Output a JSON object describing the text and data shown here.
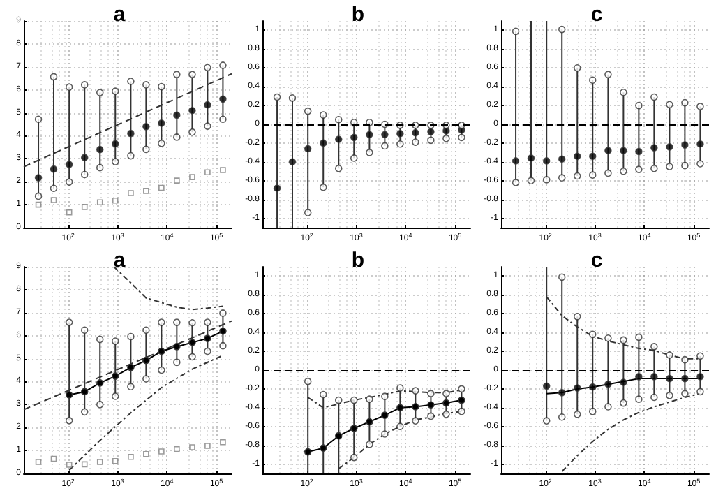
{
  "chart_data": [
    {
      "type": "scatter",
      "title": "a",
      "log": "x",
      "grid": true,
      "xlim": [
        12.6,
        204000
      ],
      "ylim": [
        0,
        9
      ],
      "xticks": [
        {
          "value": 100,
          "label": "10$^{2}$"
        },
        {
          "value": 1000,
          "label": "10$^{3}$"
        },
        {
          "value": 10000,
          "label": "10$^{4}$"
        },
        {
          "value": 100000,
          "label": "10$^{5}$"
        }
      ],
      "yticks": [
        0,
        1,
        2,
        3,
        4,
        5,
        6,
        7,
        8,
        9
      ],
      "x": [
        25,
        51,
        105,
        215,
        440,
        900,
        1850,
        3780,
        7730,
        15800,
        32400,
        66200,
        135500
      ],
      "series": [
        {
          "type": "line",
          "x": [
            12.6,
            204000
          ],
          "values": [
            2.65,
            6.7
          ],
          "color": "#333333",
          "line_style": "dashed",
          "marker": "none"
        },
        {
          "values": [
            1.0,
            1.2,
            0.66,
            0.9,
            1.1,
            1.18,
            1.5,
            1.6,
            1.73,
            2.05,
            2.2,
            2.41,
            2.51
          ],
          "color": "#808080",
          "marker": "square"
        },
        {
          "values": [
            2.17,
            2.55,
            2.75,
            3.05,
            3.4,
            3.65,
            4.1,
            4.4,
            4.55,
            4.9,
            5.1,
            5.35,
            5.6
          ],
          "color": "#000000",
          "marker": "circle",
          "errors": [
            [
              1.37,
              4.72
            ],
            [
              1.71,
              6.57
            ],
            [
              1.99,
              6.12
            ],
            [
              2.31,
              6.22
            ],
            [
              2.61,
              5.88
            ],
            [
              2.87,
              5.94
            ],
            [
              3.13,
              6.37
            ],
            [
              3.41,
              6.22
            ],
            [
              3.67,
              6.14
            ],
            [
              3.94,
              6.67
            ],
            [
              4.16,
              6.67
            ],
            [
              4.42,
              6.97
            ],
            [
              4.72,
              7.07
            ]
          ]
        },
        {
          "values": [
            4.72,
            6.57,
            6.12,
            6.22,
            5.88,
            5.94,
            6.37,
            6.22,
            6.14,
            6.67,
            6.67,
            6.97,
            7.07
          ],
          "color": "#ffffff",
          "marker": "circle"
        },
        {
          "values": [
            1.37,
            1.71,
            1.99,
            2.31,
            2.61,
            2.87,
            3.13,
            3.41,
            3.67,
            3.94,
            4.16,
            4.42,
            4.72
          ],
          "color": "#ffffff",
          "marker": "circle"
        }
      ]
    },
    {
      "type": "scatter",
      "title": "b",
      "log": "x",
      "grid": true,
      "xlim": [
        12.6,
        204000
      ],
      "ylim": [
        -1.1,
        1.1
      ],
      "xticks": [
        {
          "value": 100,
          "label": "10$^{2}$"
        },
        {
          "value": 1000,
          "label": "10$^{3}$"
        },
        {
          "value": 10000,
          "label": "10$^{4}$"
        },
        {
          "value": 100000,
          "label": "10$^{5}$"
        }
      ],
      "yticks": [
        -1,
        -0.8,
        -0.6,
        -0.4,
        -0.2,
        0,
        0.2,
        0.4,
        0.6,
        0.8,
        1
      ],
      "x": [
        25,
        51,
        105,
        215,
        440,
        900,
        1850,
        3780,
        7730,
        15800,
        32400,
        66200,
        135500
      ],
      "ref_lines": [
        {
          "axis": "y",
          "value": 0,
          "line_style": "dashed",
          "color": "#000000"
        }
      ],
      "series": [
        {
          "values": [
            -0.68,
            -0.4,
            -0.26,
            -0.2,
            -0.16,
            -0.14,
            -0.11,
            -0.11,
            -0.1,
            -0.09,
            -0.08,
            -0.07,
            -0.06
          ],
          "color": "#000000",
          "marker": "circle",
          "errors": [
            [
              -1.1,
              0.29
            ],
            [
              -1.1,
              0.28
            ],
            [
              -0.94,
              0.14
            ],
            [
              -0.67,
              0.1
            ],
            [
              -0.47,
              0.05
            ],
            [
              -0.36,
              0.02
            ],
            [
              -0.3,
              0.02
            ],
            [
              -0.23,
              0.0
            ],
            [
              -0.21,
              -0.01
            ],
            [
              -0.19,
              -0.01
            ],
            [
              -0.17,
              -0.01
            ],
            [
              -0.15,
              -0.01
            ],
            [
              -0.14,
              -0.01
            ]
          ]
        },
        {
          "values": [
            0.29,
            0.28,
            0.14,
            0.1,
            0.05,
            0.02,
            0.02,
            0.0,
            -0.01,
            -0.01,
            -0.01,
            -0.01,
            -0.01
          ],
          "color": "#ffffff",
          "marker": "circle"
        },
        {
          "values": [
            null,
            null,
            -0.94,
            -0.67,
            -0.47,
            -0.36,
            -0.3,
            -0.23,
            -0.21,
            -0.19,
            -0.17,
            -0.15,
            -0.14
          ],
          "color": "#ffffff",
          "marker": "circle"
        }
      ]
    },
    {
      "type": "scatter",
      "title": "c",
      "log": "x",
      "grid": true,
      "xlim": [
        12.6,
        204000
      ],
      "ylim": [
        -1.1,
        1.1
      ],
      "xticks": [
        {
          "value": 100,
          "label": "10$^{2}$"
        },
        {
          "value": 1000,
          "label": "10$^{3}$"
        },
        {
          "value": 10000,
          "label": "10$^{4}$"
        },
        {
          "value": 100000,
          "label": "10$^{5}$"
        }
      ],
      "yticks": [
        -1,
        -0.8,
        -0.6,
        -0.4,
        -0.2,
        0,
        0.2,
        0.4,
        0.6,
        0.8,
        1
      ],
      "x": [
        25,
        51,
        105,
        215,
        440,
        900,
        1850,
        3780,
        7730,
        15800,
        32400,
        66200,
        135500
      ],
      "ref_lines": [
        {
          "axis": "y",
          "value": 0,
          "line_style": "dashed",
          "color": "#000000"
        }
      ],
      "series": [
        {
          "values": [
            -0.39,
            -0.36,
            -0.39,
            -0.37,
            -0.34,
            -0.34,
            -0.28,
            -0.28,
            -0.29,
            -0.25,
            -0.24,
            -0.22,
            -0.21
          ],
          "color": "#000000",
          "marker": "circle",
          "errors": [
            [
              -0.62,
              0.99
            ],
            [
              -0.6,
              1.1
            ],
            [
              -0.59,
              1.1
            ],
            [
              -0.57,
              1.01
            ],
            [
              -0.55,
              0.6
            ],
            [
              -0.54,
              0.47
            ],
            [
              -0.52,
              0.53
            ],
            [
              -0.5,
              0.34
            ],
            [
              -0.48,
              0.2
            ],
            [
              -0.47,
              0.29
            ],
            [
              -0.45,
              0.21
            ],
            [
              -0.44,
              0.23
            ],
            [
              -0.42,
              0.19
            ]
          ]
        },
        {
          "values": [
            0.99,
            null,
            null,
            1.01,
            0.6,
            0.47,
            0.53,
            0.34,
            0.2,
            0.29,
            0.21,
            0.23,
            0.19
          ],
          "color": "#ffffff",
          "marker": "circle"
        },
        {
          "values": [
            -0.62,
            -0.6,
            -0.59,
            -0.57,
            -0.55,
            -0.54,
            -0.52,
            -0.5,
            -0.48,
            -0.47,
            -0.45,
            -0.44,
            -0.42
          ],
          "color": "#ffffff",
          "marker": "circle"
        }
      ]
    },
    {
      "type": "line",
      "title": "a",
      "log": "x",
      "grid": true,
      "xlim": [
        12.6,
        204000
      ],
      "ylim": [
        0,
        9
      ],
      "xticks": [
        {
          "value": 100,
          "label": "10$^{2}$"
        },
        {
          "value": 1000,
          "label": "10$^{3}$"
        },
        {
          "value": 10000,
          "label": "10$^{4}$"
        },
        {
          "value": 100000,
          "label": "10$^{5}$"
        }
      ],
      "yticks": [
        0,
        1,
        2,
        3,
        4,
        5,
        6,
        7,
        8,
        9
      ],
      "x": [
        105,
        215,
        440,
        900,
        1850,
        3780,
        7730,
        15800,
        32400,
        66200,
        135500
      ],
      "series": [
        {
          "x": [
            12.6,
            204000
          ],
          "values": [
            2.78,
            6.64
          ],
          "color": "#333333",
          "line_style": "dashed",
          "marker": "none"
        },
        {
          "x": [
            840,
            1850,
            3780,
            7730,
            15800,
            32400,
            66200,
            135500
          ],
          "values": [
            9,
            8.3,
            7.64,
            7.44,
            7.24,
            7.14,
            7.2,
            7.28
          ],
          "color": "#333333",
          "line_style": "dotted",
          "marker": "none"
        },
        {
          "x": [
            105,
            440,
            1850,
            7730,
            32400,
            135500
          ],
          "values": [
            0.14,
            1.44,
            2.64,
            3.74,
            4.54,
            5.14
          ],
          "color": "#333333",
          "line_style": "dotted",
          "marker": "none"
        },
        {
          "type": "scatter",
          "x": [
            25,
            51,
            105,
            215,
            440,
            900,
            1850,
            3780,
            7730,
            15800,
            32400,
            66200,
            135500
          ],
          "values": [
            0.5,
            0.64,
            0.38,
            0.4,
            0.5,
            0.54,
            0.72,
            0.84,
            0.96,
            1.06,
            1.14,
            1.2,
            1.36
          ],
          "color": "#808080",
          "marker": "square"
        },
        {
          "values": [
            3.42,
            3.56,
            3.94,
            4.24,
            4.62,
            4.92,
            5.32,
            5.52,
            5.7,
            5.88,
            6.2
          ],
          "color": "#000000",
          "marker": "circle",
          "line_style": "solid",
          "errors": [
            [
              2.3,
              6.58
            ],
            [
              2.68,
              6.24
            ],
            [
              3.0,
              5.84
            ],
            [
              3.36,
              5.76
            ],
            [
              3.78,
              5.96
            ],
            [
              4.12,
              6.24
            ],
            [
              4.5,
              6.58
            ],
            [
              4.84,
              6.58
            ],
            [
              5.08,
              6.56
            ],
            [
              5.32,
              6.58
            ],
            [
              5.56,
              6.98
            ]
          ]
        },
        {
          "type": "scatter",
          "values": [
            6.58,
            6.24,
            5.84,
            5.76,
            5.96,
            6.24,
            6.58,
            6.58,
            6.56,
            6.58,
            6.98
          ],
          "color": "#ffffff",
          "marker": "circle"
        },
        {
          "type": "scatter",
          "values": [
            2.3,
            2.68,
            3.0,
            3.36,
            3.78,
            4.12,
            4.5,
            4.84,
            5.08,
            5.32,
            5.56
          ],
          "color": "#ffffff",
          "marker": "circle"
        }
      ]
    },
    {
      "type": "line",
      "title": "b",
      "log": "x",
      "grid": true,
      "xlim": [
        12.6,
        204000
      ],
      "ylim": [
        -1.1,
        1.1
      ],
      "xticks": [
        {
          "value": 100,
          "label": "10$^{2}$"
        },
        {
          "value": 1000,
          "label": "10$^{3}$"
        },
        {
          "value": 10000,
          "label": "10$^{4}$"
        },
        {
          "value": 100000,
          "label": "10$^{5}$"
        }
      ],
      "yticks": [
        -1,
        -0.8,
        -0.6,
        -0.4,
        -0.2,
        0,
        0.2,
        0.4,
        0.6,
        0.8,
        1
      ],
      "x": [
        105,
        215,
        440,
        900,
        1850,
        3780,
        7730,
        15800,
        32400,
        66200,
        135500
      ],
      "ref_lines": [
        {
          "axis": "y",
          "value": 0,
          "line_style": "dashed",
          "color": "#000000"
        }
      ],
      "series": [
        {
          "values": [
            -0.29,
            -0.4,
            -0.36,
            -0.32,
            -0.29,
            -0.26,
            -0.22,
            -0.23,
            -0.24,
            -0.24,
            -0.21
          ],
          "color": "#333333",
          "line_style": "dotted",
          "marker": "none"
        },
        {
          "x": [
            440,
            900,
            1850,
            3780,
            7730,
            15800,
            32400,
            66200,
            135500
          ],
          "values": [
            -1.05,
            -0.93,
            -0.79,
            -0.68,
            -0.6,
            -0.53,
            -0.5,
            -0.46,
            -0.44
          ],
          "color": "#333333",
          "line_style": "dotted",
          "marker": "none"
        },
        {
          "values": [
            -0.87,
            -0.83,
            -0.7,
            -0.62,
            -0.55,
            -0.48,
            -0.4,
            -0.39,
            -0.37,
            -0.35,
            -0.32
          ],
          "color": "#000000",
          "marker": "circle",
          "line_style": "solid",
          "errors": [
            [
              -1.1,
              -0.12
            ],
            [
              -1.1,
              -0.26
            ],
            [
              -1.1,
              -0.32
            ],
            [
              -0.93,
              -0.32
            ],
            [
              -0.79,
              -0.31
            ],
            [
              -0.68,
              -0.28
            ],
            [
              -0.6,
              -0.19
            ],
            [
              -0.54,
              -0.22
            ],
            [
              -0.49,
              -0.25
            ],
            [
              -0.47,
              -0.25
            ],
            [
              -0.44,
              -0.2
            ]
          ]
        },
        {
          "type": "scatter",
          "values": [
            -0.12,
            -0.26,
            -0.32,
            -0.32,
            -0.31,
            -0.28,
            -0.19,
            -0.22,
            -0.25,
            -0.25,
            -0.2
          ],
          "color": "#ffffff",
          "marker": "circle"
        },
        {
          "type": "scatter",
          "values": [
            null,
            null,
            null,
            -0.93,
            -0.79,
            -0.68,
            -0.6,
            -0.54,
            -0.49,
            -0.47,
            -0.44
          ],
          "color": "#ffffff",
          "marker": "circle"
        }
      ]
    },
    {
      "type": "line",
      "title": "c",
      "log": "x",
      "grid": true,
      "xlim": [
        12.6,
        204000
      ],
      "ylim": [
        -1.1,
        1.1
      ],
      "xticks": [
        {
          "value": 100,
          "label": "10$^{2}$"
        },
        {
          "value": 1000,
          "label": "10$^{3}$"
        },
        {
          "value": 10000,
          "label": "10$^{4}$"
        },
        {
          "value": 100000,
          "label": "10$^{5}$"
        }
      ],
      "yticks": [
        -1,
        -0.8,
        -0.6,
        -0.4,
        -0.2,
        0,
        0.2,
        0.4,
        0.6,
        0.8,
        1
      ],
      "x": [
        105,
        215,
        440,
        900,
        1850,
        3780,
        7730,
        15800,
        32400,
        66200,
        135500
      ],
      "ref_lines": [
        {
          "axis": "y",
          "value": 0,
          "line_style": "dashed",
          "color": "#000000"
        }
      ],
      "series": [
        {
          "values": [
            0.78,
            0.58,
            0.46,
            0.36,
            0.31,
            0.27,
            0.23,
            0.21,
            0.16,
            0.12,
            0.12
          ],
          "color": "#333333",
          "line_style": "dotted",
          "marker": "none"
        },
        {
          "x": [
            215,
            440,
            900,
            1850,
            3780,
            7730,
            15800,
            32400,
            66200,
            135500
          ],
          "values": [
            -1.08,
            -0.91,
            -0.76,
            -0.63,
            -0.53,
            -0.45,
            -0.39,
            -0.34,
            -0.29,
            -0.25
          ],
          "color": "#333333",
          "line_style": "dotted",
          "marker": "none"
        },
        {
          "values": [
            -0.25,
            -0.24,
            -0.2,
            -0.18,
            -0.15,
            -0.12,
            -0.09,
            -0.09,
            -0.09,
            -0.09,
            -0.09
          ],
          "color": "#000000",
          "line_style": "solid",
          "marker": "none"
        },
        {
          "type": "scatter",
          "values": [
            -0.17,
            -0.24,
            -0.19,
            -0.18,
            -0.15,
            -0.13,
            -0.07,
            -0.07,
            -0.09,
            -0.09,
            -0.07
          ],
          "color": "#000000",
          "marker": "circle",
          "errors": [
            [
              -0.54,
              1.1
            ],
            [
              -0.5,
              0.99
            ],
            [
              -0.47,
              0.57
            ],
            [
              -0.44,
              0.38
            ],
            [
              -0.39,
              0.34
            ],
            [
              -0.35,
              0.32
            ],
            [
              -0.31,
              0.35
            ],
            [
              -0.29,
              0.25
            ],
            [
              -0.27,
              0.16
            ],
            [
              -0.25,
              0.11
            ],
            [
              -0.23,
              0.15
            ]
          ]
        },
        {
          "type": "scatter",
          "values": [
            null,
            0.99,
            0.57,
            0.38,
            0.34,
            0.32,
            0.35,
            0.25,
            0.16,
            0.11,
            0.15
          ],
          "color": "#ffffff",
          "marker": "circle"
        },
        {
          "type": "scatter",
          "values": [
            -0.54,
            -0.5,
            -0.47,
            -0.44,
            -0.39,
            -0.35,
            -0.31,
            -0.29,
            -0.27,
            -0.25,
            -0.23
          ],
          "color": "#ffffff",
          "marker": "circle"
        }
      ]
    }
  ]
}
